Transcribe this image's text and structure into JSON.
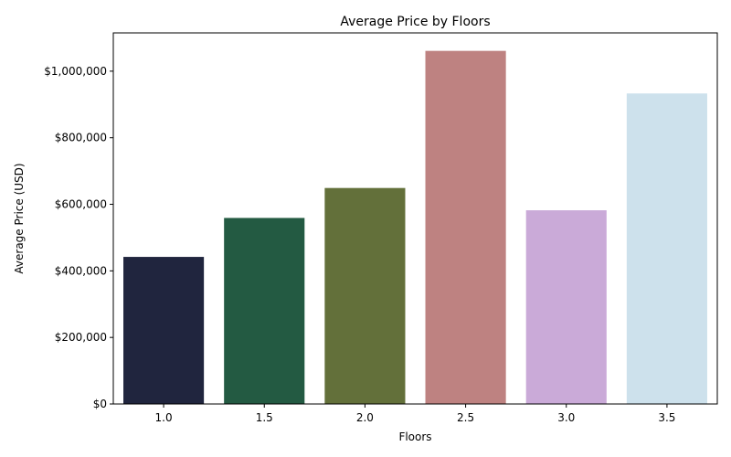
{
  "chart_data": {
    "type": "bar",
    "title": "Average Price by Floors",
    "xlabel": "Floors",
    "ylabel": "Average Price (USD)",
    "categories": [
      "1.0",
      "1.5",
      "2.0",
      "2.5",
      "3.0",
      "3.5"
    ],
    "values": [
      442000,
      559000,
      649000,
      1061000,
      582000,
      933000
    ],
    "bar_colors": [
      "#20253e",
      "#235a42",
      "#63703a",
      "#be8281",
      "#caaad8",
      "#cde1ec"
    ],
    "ylim": [
      0,
      1115000
    ],
    "yticks": [
      0,
      200000,
      400000,
      600000,
      800000,
      1000000
    ],
    "ytick_labels": [
      "$0",
      "$200,000",
      "$400,000",
      "$600,000",
      "$800,000",
      "$1,000,000"
    ],
    "grid": false,
    "legend": "none"
  }
}
